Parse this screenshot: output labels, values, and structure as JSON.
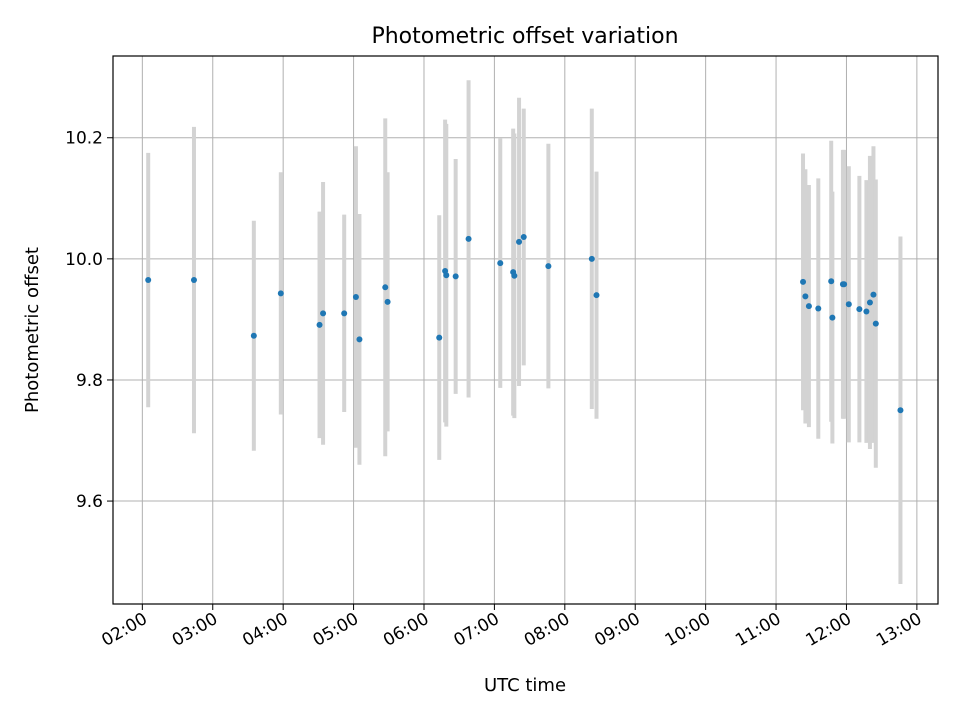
{
  "chart_data": {
    "type": "scatter",
    "title": "Photometric offset variation",
    "xlabel": "UTC time",
    "ylabel": "Photometric offset",
    "xlim": [
      "01:35",
      "13:18"
    ],
    "ylim": [
      9.43,
      10.335
    ],
    "grid": true,
    "x_ticks": [
      "02:00",
      "03:00",
      "04:00",
      "05:00",
      "06:00",
      "07:00",
      "08:00",
      "09:00",
      "10:00",
      "11:00",
      "12:00",
      "13:00"
    ],
    "y_ticks": [
      9.6,
      9.8,
      10.0,
      10.2
    ],
    "y_tick_labels": [
      "9.6",
      "9.8",
      "10.0",
      "10.2"
    ],
    "point_color": "#1f77b4",
    "errorbar_color": "#d3d3d3",
    "points": [
      {
        "x": "02:05",
        "y": 9.965,
        "err": 0.21
      },
      {
        "x": "02:44",
        "y": 9.965,
        "err": 0.253
      },
      {
        "x": "03:35",
        "y": 9.873,
        "err": 0.19
      },
      {
        "x": "03:58",
        "y": 9.943,
        "err": 0.2
      },
      {
        "x": "04:31",
        "y": 9.891,
        "err": 0.187
      },
      {
        "x": "04:34",
        "y": 9.91,
        "err": 0.217
      },
      {
        "x": "04:52",
        "y": 9.91,
        "err": 0.163
      },
      {
        "x": "05:02",
        "y": 9.937,
        "err": 0.249
      },
      {
        "x": "05:05",
        "y": 9.867,
        "err": 0.207
      },
      {
        "x": "05:27",
        "y": 9.953,
        "err": 0.279
      },
      {
        "x": "05:29",
        "y": 9.929,
        "err": 0.214
      },
      {
        "x": "06:13",
        "y": 9.87,
        "err": 0.202
      },
      {
        "x": "06:18",
        "y": 9.98,
        "err": 0.25
      },
      {
        "x": "06:19",
        "y": 9.973,
        "err": 0.25
      },
      {
        "x": "06:27",
        "y": 9.971,
        "err": 0.194
      },
      {
        "x": "06:38",
        "y": 10.033,
        "err": 0.262
      },
      {
        "x": "07:05",
        "y": 9.993,
        "err": 0.206
      },
      {
        "x": "07:16",
        "y": 9.978,
        "err": 0.237
      },
      {
        "x": "07:17",
        "y": 9.972,
        "err": 0.235
      },
      {
        "x": "07:21",
        "y": 10.028,
        "err": 0.238
      },
      {
        "x": "07:25",
        "y": 10.036,
        "err": 0.212
      },
      {
        "x": "07:46",
        "y": 9.988,
        "err": 0.202
      },
      {
        "x": "08:23",
        "y": 10.0,
        "err": 0.248
      },
      {
        "x": "08:27",
        "y": 9.94,
        "err": 0.204
      },
      {
        "x": "11:23",
        "y": 9.962,
        "err": 0.212
      },
      {
        "x": "11:25",
        "y": 9.938,
        "err": 0.21
      },
      {
        "x": "11:28",
        "y": 9.922,
        "err": 0.2
      },
      {
        "x": "11:36",
        "y": 9.918,
        "err": 0.215
      },
      {
        "x": "11:47",
        "y": 9.963,
        "err": 0.232
      },
      {
        "x": "11:48",
        "y": 9.903,
        "err": 0.208
      },
      {
        "x": "11:57",
        "y": 9.958,
        "err": 0.222
      },
      {
        "x": "11:58",
        "y": 9.958,
        "err": 0.222
      },
      {
        "x": "12:02",
        "y": 9.925,
        "err": 0.228
      },
      {
        "x": "12:11",
        "y": 9.917,
        "err": 0.22
      },
      {
        "x": "12:17",
        "y": 9.913,
        "err": 0.217
      },
      {
        "x": "12:20",
        "y": 9.928,
        "err": 0.242
      },
      {
        "x": "12:23",
        "y": 9.941,
        "err": 0.245
      },
      {
        "x": "12:25",
        "y": 9.893,
        "err": 0.238
      },
      {
        "x": "12:46",
        "y": 9.75,
        "err": 0.287
      }
    ]
  }
}
